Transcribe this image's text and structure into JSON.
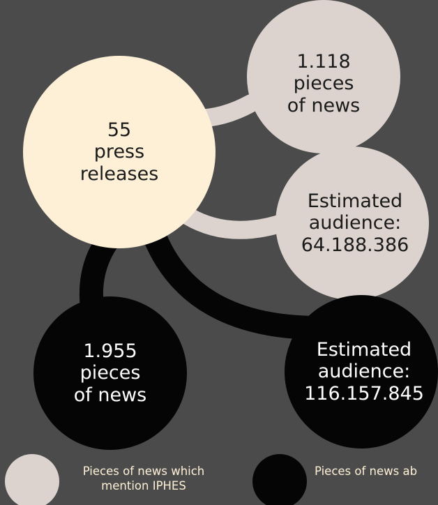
{
  "center": {
    "lines": [
      "55",
      "press",
      "releases"
    ]
  },
  "news_iphes": {
    "lines": [
      "1.118",
      "pieces",
      "of news"
    ]
  },
  "audience_iphes": {
    "lines": [
      "Estimated",
      "audience:",
      "64.188.386"
    ]
  },
  "news_other": {
    "lines": [
      "1.955",
      "pieces",
      "of news"
    ]
  },
  "audience_other": {
    "lines": [
      "Estimated",
      "audience:",
      "116.157.845"
    ]
  },
  "legend": {
    "light_label_lines": [
      "Pieces of news which",
      "mention IPHES"
    ],
    "dark_label": "Pieces of news ab"
  },
  "colors": {
    "background": "#4b4b4b",
    "center": "#fdf0d6",
    "light": "#dcd3cf",
    "dark": "#050505"
  }
}
